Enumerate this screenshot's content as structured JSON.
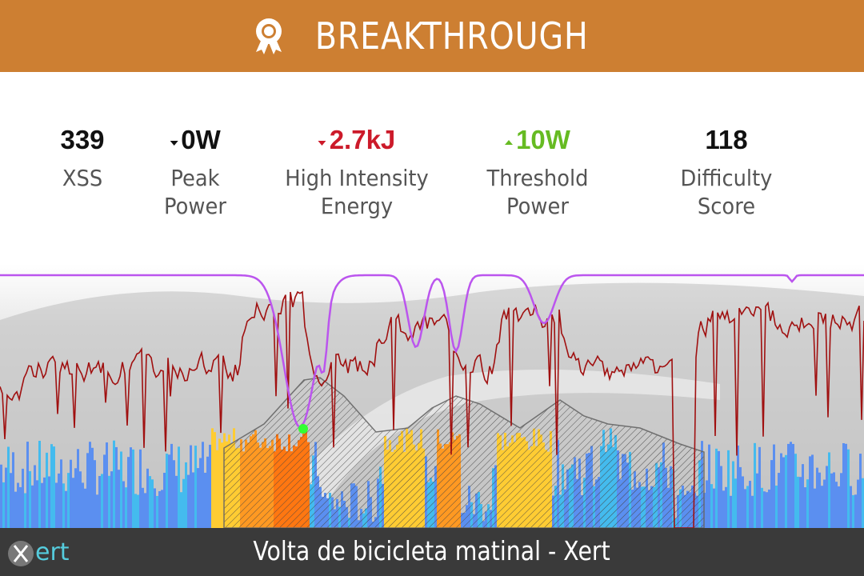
{
  "banner": {
    "title": "BREAKTHROUGH",
    "icon": "award-ribbon-icon",
    "background": "#cd7f32"
  },
  "stats": [
    {
      "key": "xss",
      "value": "339",
      "label": "XSS",
      "color": "#111111",
      "trend": "none"
    },
    {
      "key": "peak-power",
      "value": "0W",
      "label": "Peak\nPower",
      "color": "#111111",
      "trend": "down"
    },
    {
      "key": "high-intensity-energy",
      "value": "2.7kJ",
      "label": "High Intensity\nEnergy",
      "color": "#cc1a2a",
      "trend": "down"
    },
    {
      "key": "threshold-power",
      "value": "10W",
      "label": "Threshold\nPower",
      "color": "#66bb22",
      "trend": "up"
    },
    {
      "key": "difficulty-score",
      "value": "118",
      "label": "Difficulty Score",
      "color": "#111111",
      "trend": "none"
    }
  ],
  "chart": {
    "series": [
      {
        "name": "power",
        "color": "#a01010"
      },
      {
        "name": "training-load",
        "color": "#bb55ee"
      },
      {
        "name": "elevation",
        "color": "#777777"
      },
      {
        "name": "breakthrough-point",
        "color": "#33ff33"
      }
    ],
    "bar_colors": [
      "#5b8ff0",
      "#44bbee",
      "#ffcc33",
      "#ff9922",
      "#ff7711"
    ]
  },
  "footer": {
    "logo_text": "xert",
    "title": "Volta de bicicleta matinal - Xert"
  }
}
